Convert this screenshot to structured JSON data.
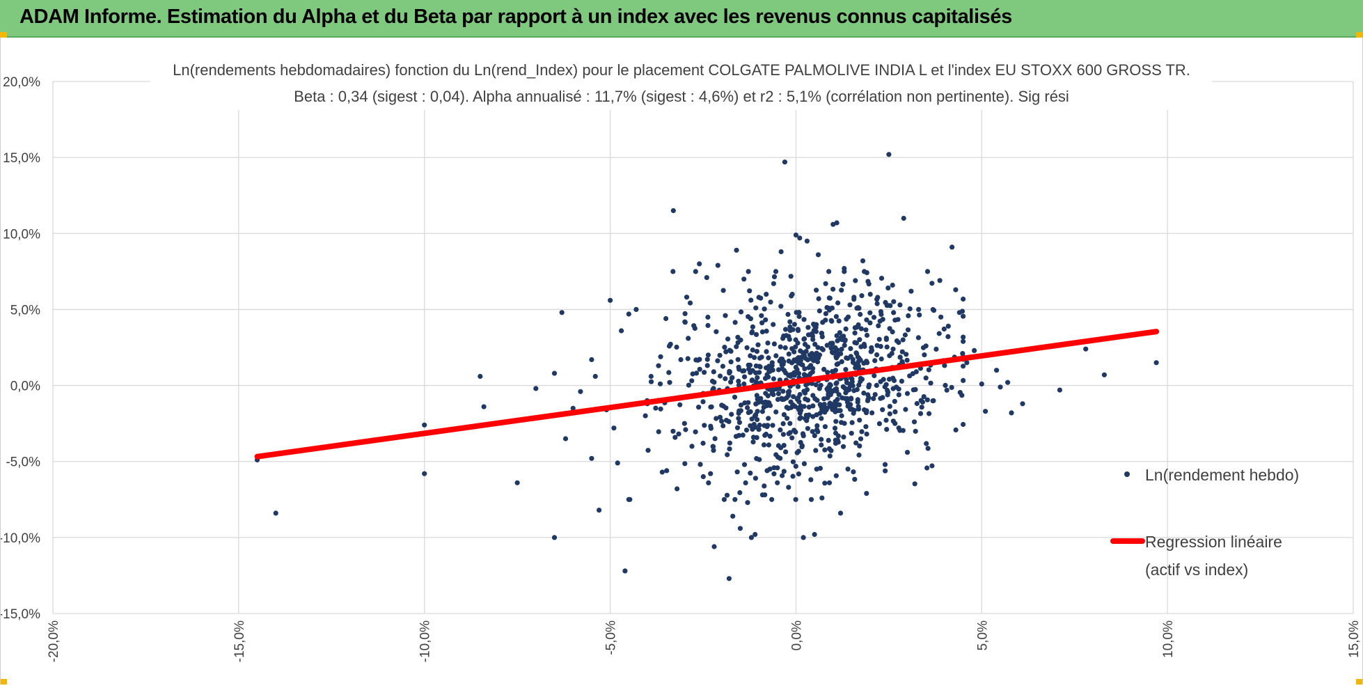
{
  "banner": {
    "title": "ADAM Informe. Estimation du Alpha et du Beta par rapport à un index avec les revenus connus capitalisés"
  },
  "colors": {
    "banner": "#7fc97f",
    "points": "#203864",
    "regression": "#ff0000",
    "grid": "#d9d9d9",
    "corner": "#f2b705"
  },
  "chart_data": {
    "type": "scatter",
    "title": "Ln(rendements hebdomadaires) fonction du Ln(rend_Index) pour le placement COLGATE PALMOLIVE INDIA  L et l'index EU STOXX 600 GROSS TR.",
    "subtitle": "Beta : 0,34 (sigest : 0,04).  Alpha annualisé : 11,7% (sigest : 4,6%) et r2 : 5,1% (corrélation non pertinente). Sig rési",
    "xlabel": "",
    "ylabel": "",
    "xlim": [
      -0.2,
      0.15
    ],
    "ylim": [
      -0.15,
      0.2
    ],
    "x_ticks": [
      -0.2,
      -0.15,
      -0.1,
      -0.05,
      0.0,
      0.05,
      0.1,
      0.15
    ],
    "y_ticks": [
      -0.15,
      -0.1,
      -0.05,
      0.0,
      0.05,
      0.1,
      0.15,
      0.2
    ],
    "x_tick_labels": [
      "-20,0%",
      "-15,0%",
      "-10,0%",
      "-5,0%",
      "0,0%",
      "5,0%",
      "10,0%",
      "15,0%"
    ],
    "y_tick_labels": [
      "-15,0%",
      "-10,0%",
      "-5,0%",
      "0,0%",
      "5,0%",
      "10,0%",
      "15,0%",
      "20,0%"
    ],
    "grid": true,
    "legend_position": "right",
    "series": [
      {
        "name": "Ln(rendement hebdo)",
        "kind": "points",
        "color": "#203864",
        "points": [
          [
            -0.145,
            -0.049
          ],
          [
            -0.14,
            -0.084
          ],
          [
            -0.1,
            -0.026
          ],
          [
            -0.1,
            -0.058
          ],
          [
            -0.085,
            0.006
          ],
          [
            -0.084,
            -0.014
          ],
          [
            -0.075,
            -0.064
          ],
          [
            -0.07,
            -0.002
          ],
          [
            -0.065,
            0.008
          ],
          [
            -0.065,
            -0.1
          ],
          [
            -0.063,
            0.048
          ],
          [
            -0.062,
            -0.035
          ],
          [
            -0.06,
            -0.015
          ],
          [
            -0.058,
            -0.004
          ],
          [
            -0.055,
            -0.048
          ],
          [
            -0.055,
            0.017
          ],
          [
            -0.054,
            0.006
          ],
          [
            -0.053,
            -0.082
          ],
          [
            -0.051,
            -0.016
          ],
          [
            -0.05,
            0.056
          ],
          [
            -0.049,
            -0.028
          ],
          [
            -0.048,
            -0.051
          ],
          [
            -0.047,
            0.036
          ],
          [
            -0.046,
            -0.122
          ],
          [
            -0.045,
            0.047
          ],
          [
            -0.043,
            0.05
          ],
          [
            -0.04,
            -0.012
          ],
          [
            -0.039,
            0.006
          ],
          [
            -0.037,
            0.013
          ],
          [
            -0.036,
            -0.057
          ],
          [
            -0.035,
            0.044
          ],
          [
            -0.034,
            0.002
          ],
          [
            -0.033,
            0.115
          ],
          [
            -0.032,
            -0.068
          ],
          [
            -0.031,
            0.017
          ],
          [
            -0.03,
            -0.025
          ],
          [
            -0.029,
            0.031
          ],
          [
            -0.028,
            -0.04
          ],
          [
            -0.027,
            0.075
          ],
          [
            -0.026,
            0.08
          ],
          [
            -0.025,
            -0.038
          ],
          [
            -0.024,
            0.071
          ],
          [
            -0.023,
            -0.058
          ],
          [
            -0.022,
            -0.106
          ],
          [
            -0.021,
            0.079
          ],
          [
            -0.02,
            -0.013
          ],
          [
            -0.019,
            0.046
          ],
          [
            -0.018,
            -0.127
          ],
          [
            -0.017,
            -0.086
          ],
          [
            -0.016,
            0.089
          ],
          [
            -0.015,
            -0.094
          ],
          [
            -0.014,
            0.07
          ],
          [
            -0.013,
            -0.077
          ],
          [
            -0.012,
            -0.1
          ],
          [
            -0.011,
            -0.098
          ],
          [
            -0.01,
            0.058
          ],
          [
            -0.009,
            -0.072
          ],
          [
            -0.008,
            0.06
          ],
          [
            -0.007,
            -0.055
          ],
          [
            -0.006,
            0.067
          ],
          [
            -0.005,
            -0.064
          ],
          [
            -0.004,
            0.088
          ],
          [
            -0.003,
            0.147
          ],
          [
            -0.002,
            -0.067
          ],
          [
            -0.001,
            0.06
          ],
          [
            0.0,
            0.099
          ],
          [
            0.001,
            0.097
          ],
          [
            0.002,
            -0.1
          ],
          [
            0.003,
            0.095
          ],
          [
            0.004,
            -0.062
          ],
          [
            0.005,
            -0.098
          ],
          [
            0.006,
            0.086
          ],
          [
            0.007,
            -0.074
          ],
          [
            0.008,
            0.067
          ],
          [
            0.009,
            -0.064
          ],
          [
            0.01,
            0.106
          ],
          [
            0.011,
            0.107
          ],
          [
            0.012,
            -0.084
          ],
          [
            0.013,
            0.077
          ],
          [
            0.014,
            -0.055
          ],
          [
            0.016,
            0.069
          ],
          [
            0.018,
            0.082
          ],
          [
            0.019,
            -0.071
          ],
          [
            0.02,
            0.06
          ],
          [
            0.022,
            0.058
          ],
          [
            0.024,
            -0.052
          ],
          [
            0.025,
            0.152
          ],
          [
            0.026,
            0.066
          ],
          [
            0.028,
            0.053
          ],
          [
            0.029,
            0.11
          ],
          [
            0.03,
            -0.044
          ],
          [
            0.031,
            0.062
          ],
          [
            0.033,
            0.05
          ],
          [
            0.035,
            0.026
          ],
          [
            0.037,
            -0.01
          ],
          [
            0.039,
            0.045
          ],
          [
            0.041,
            0.039
          ],
          [
            0.042,
            0.091
          ],
          [
            0.043,
            0.063
          ],
          [
            0.044,
            0.048
          ],
          [
            0.046,
            0.015
          ],
          [
            0.048,
            0.023
          ],
          [
            0.05,
            0.001
          ],
          [
            0.051,
            -0.017
          ],
          [
            0.054,
            0.01
          ],
          [
            0.055,
            -0.001
          ],
          [
            0.057,
            0.002
          ],
          [
            0.058,
            -0.018
          ],
          [
            0.061,
            -0.012
          ],
          [
            0.071,
            -0.003
          ],
          [
            0.078,
            0.024
          ],
          [
            0.078,
            0.029
          ],
          [
            0.083,
            0.007
          ],
          [
            0.097,
            0.015
          ]
        ],
        "cloud": {
          "count": 900,
          "center": [
            0.004,
            0.003
          ],
          "std_x": 0.018,
          "std_y": 0.029,
          "seed": 7
        }
      },
      {
        "name": "Regression linéaire (actif vs index)",
        "kind": "line",
        "color": "#ff0000",
        "slope": 0.34,
        "intercept": 0.0025,
        "x_range": [
          -0.145,
          0.097
        ]
      }
    ],
    "legend": [
      {
        "label": "Ln(rendement hebdo)",
        "symbol": "dot",
        "color": "#203864"
      },
      {
        "label": "Regression linéaire",
        "label2": "(actif vs index)",
        "symbol": "line",
        "color": "#ff0000"
      }
    ]
  }
}
